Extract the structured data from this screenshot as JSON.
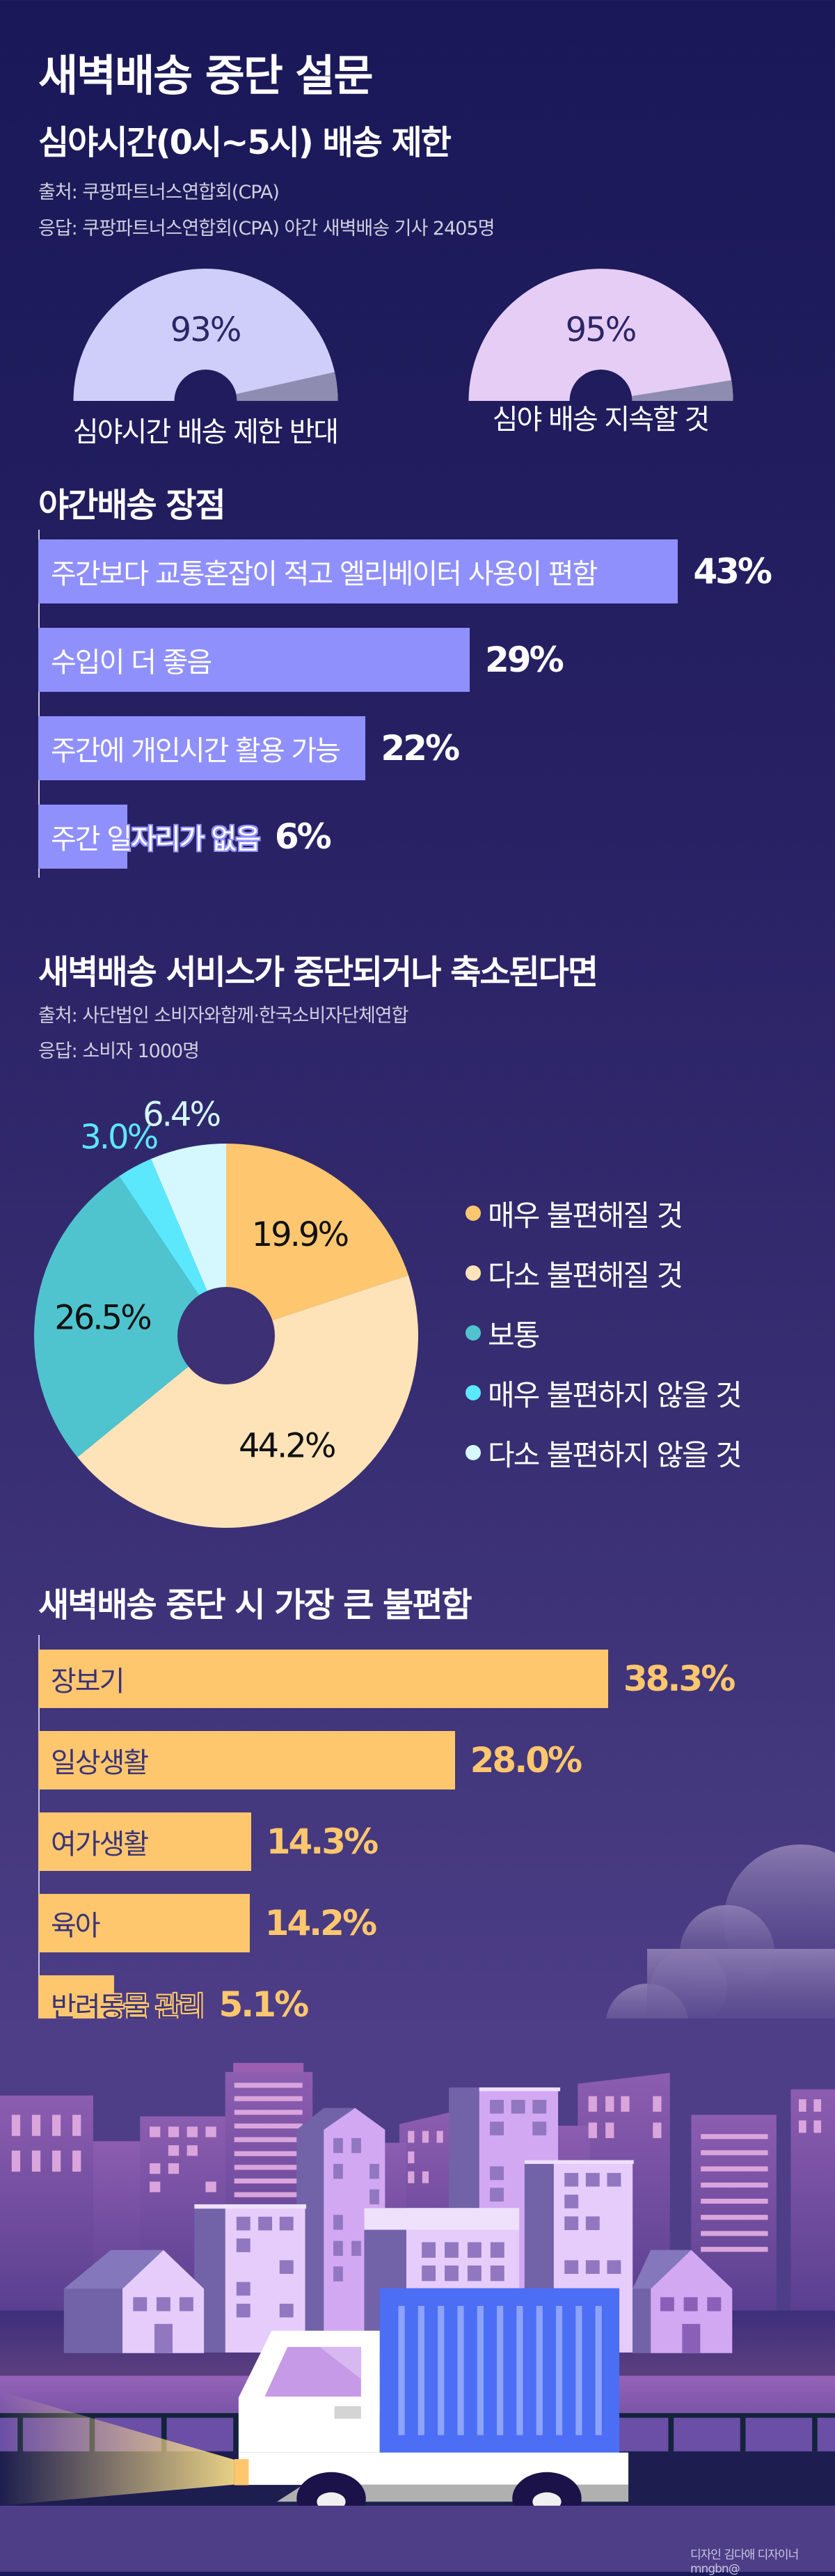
{
  "title": "새벽배송 중단 설문",
  "section1": {
    "heading": "심야시간(0시~5시) 배송 제한",
    "source": "출처: 쿠팡파트너스연합회(CPA)",
    "respondents": "응답: 쿠팡파트너스연합회(CPA) 야간 새벽배송 기사 2405명"
  },
  "section2": {
    "heading": "야간배송 장점"
  },
  "section3": {
    "heading": "새벽배송 서비스가 중단되거나 축소된다면",
    "source": "출처: 사단법인 소비자와함께·한국소비자단체연합",
    "respondents": "응답: 소비자 1000명"
  },
  "section4": {
    "heading": "새벽배송 중단 시 가장 큰 불편함"
  },
  "chart_data": [
    {
      "type": "pie",
      "subtype": "half-donut gauge",
      "remainder_color": "#8e8cb0",
      "items": [
        {
          "label": "심야시간 배송 제한 반대",
          "value": 93,
          "display": "93%",
          "color": "#cfcdfa"
        },
        {
          "label": "심야 배송 지속할 것",
          "value": 95,
          "display": "95%",
          "color": "#e6cdf5"
        }
      ]
    },
    {
      "type": "bar",
      "orientation": "horizontal",
      "color": "#9090fc",
      "categories": [
        "주간보다 교통혼잡이 적고 엘리베이터 사용이 편함",
        "수입이 더 좋음",
        "주간에 개인시간 활용 가능",
        "주간 일자리가 없음"
      ],
      "values": [
        43,
        29,
        22,
        6
      ],
      "labels": [
        "43%",
        "29%",
        "22%",
        "6%"
      ]
    },
    {
      "type": "pie",
      "subtype": "donut",
      "legend": "right",
      "categories": [
        "매우 불편해질 것",
        "다소 불편해질 것",
        "보통",
        "매우 불편하지 않을 것",
        "다소 불편하지 않을 것"
      ],
      "values": [
        19.9,
        44.2,
        26.5,
        3.0,
        6.4
      ],
      "labels": [
        "19.9%",
        "44.2%",
        "26.5%",
        "3.0%",
        "6.4%"
      ],
      "colors": [
        "#fec76f",
        "#fee3b8",
        "#4fc4ce",
        "#5ce8fc",
        "#d4f8fe"
      ]
    },
    {
      "type": "bar",
      "orientation": "horizontal",
      "color": "#fec76e",
      "categories": [
        "장보기",
        "일상생활",
        "여가생활",
        "육아",
        "반려동물 관리"
      ],
      "values": [
        38.3,
        28.0,
        14.3,
        14.2,
        5.1
      ],
      "labels": [
        "38.3%",
        "28.0%",
        "14.3%",
        "14.2%",
        "5.1%"
      ]
    }
  ],
  "credit": "디자인 김다애 디자이너 mngbn@"
}
